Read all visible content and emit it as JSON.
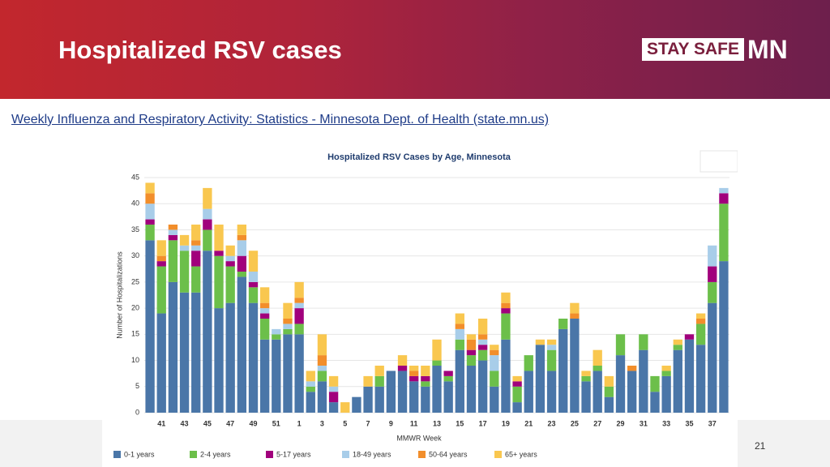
{
  "header": {
    "title": "Hospitalized RSV cases",
    "logo_text": "STAY SAFE",
    "logo_mark": "MN"
  },
  "source_link": "Weekly Influenza and Respiratory Activity: Statistics - Minnesota Dept. of Health (state.mn.us)",
  "page_number": "21",
  "chart_data": {
    "type": "stacked_bar",
    "title": "Hospitalized RSV Cases by Age, Minnesota",
    "x_label": "MMWR Week",
    "y_label": "Number of Hospitalizations",
    "categories": [
      null,
      "41",
      null,
      "43",
      null,
      "45",
      null,
      "47",
      null,
      "49",
      null,
      "51",
      null,
      "1",
      null,
      "3",
      null,
      "5",
      null,
      "7",
      null,
      "9",
      null,
      "11",
      null,
      "13",
      null,
      "15",
      null,
      "17",
      null,
      "19",
      null,
      "21",
      null,
      "23",
      null,
      "25",
      null,
      "27",
      null,
      "29",
      null,
      "31",
      null,
      "33",
      null,
      "35",
      null,
      "37",
      null
    ],
    "ylim": [
      0,
      45
    ],
    "yticks": [
      0,
      5,
      10,
      15,
      20,
      25,
      30,
      35,
      40,
      45
    ],
    "grid": true,
    "legend": "bottom",
    "series": [
      {
        "name": "0-1 years",
        "color": "#4a76a8",
        "values": [
          33,
          19,
          25,
          23,
          23,
          31,
          20,
          21,
          26,
          21,
          14,
          14,
          15,
          15,
          4,
          6,
          2,
          0,
          3,
          5,
          5,
          8,
          8,
          6,
          5,
          9,
          6,
          12,
          9,
          10,
          5,
          14,
          2,
          8,
          13,
          8,
          16,
          18,
          6,
          8,
          3,
          11,
          8,
          12,
          4,
          7,
          12,
          14,
          13,
          21,
          29
        ]
      },
      {
        "name": "2-4 years",
        "color": "#6cbf4a",
        "values": [
          3,
          9,
          8,
          8,
          5,
          4,
          10,
          7,
          1,
          3,
          4,
          1,
          1,
          2,
          1,
          2,
          0,
          0,
          0,
          0,
          2,
          0,
          0,
          0,
          1,
          1,
          1,
          2,
          2,
          2,
          3,
          5,
          3,
          3,
          0,
          4,
          2,
          0,
          1,
          1,
          2,
          4,
          0,
          3,
          3,
          1,
          1,
          0,
          4,
          4,
          11
        ]
      },
      {
        "name": "5-17 years",
        "color": "#a1007c",
        "values": [
          1,
          1,
          1,
          0,
          3,
          2,
          1,
          1,
          3,
          1,
          1,
          0,
          0,
          3,
          0,
          0,
          2,
          0,
          0,
          0,
          0,
          0,
          1,
          1,
          1,
          0,
          1,
          0,
          1,
          1,
          0,
          1,
          1,
          0,
          0,
          0,
          0,
          0,
          0,
          0,
          0,
          0,
          0,
          0,
          0,
          0,
          0,
          1,
          0,
          3,
          2
        ]
      },
      {
        "name": "18-49 years",
        "color": "#a8cde9",
        "values": [
          3,
          0,
          1,
          1,
          1,
          2,
          0,
          1,
          3,
          2,
          1,
          1,
          1,
          1,
          1,
          1,
          1,
          0,
          0,
          0,
          0,
          0,
          0,
          0,
          0,
          0,
          0,
          2,
          0,
          1,
          3,
          0,
          0,
          0,
          0,
          1,
          0,
          0,
          0,
          0,
          0,
          0,
          0,
          0,
          0,
          0,
          0,
          0,
          0,
          4,
          1
        ]
      },
      {
        "name": "50-64 years",
        "color": "#f28e2b",
        "values": [
          2,
          1,
          1,
          0,
          1,
          0,
          0,
          0,
          1,
          0,
          1,
          0,
          1,
          1,
          0,
          2,
          0,
          0,
          0,
          0,
          0,
          0,
          0,
          1,
          0,
          0,
          0,
          1,
          2,
          1,
          1,
          1,
          0,
          0,
          0,
          0,
          0,
          1,
          0,
          0,
          0,
          0,
          1,
          0,
          0,
          0,
          0,
          0,
          1,
          0,
          0
        ]
      },
      {
        "name": "65+ years",
        "color": "#f9c74f",
        "values": [
          2,
          3,
          0,
          2,
          3,
          4,
          5,
          2,
          2,
          4,
          3,
          0,
          3,
          3,
          2,
          4,
          2,
          2,
          0,
          2,
          2,
          0,
          2,
          1,
          2,
          4,
          0,
          2,
          1,
          3,
          1,
          2,
          1,
          0,
          1,
          1,
          0,
          2,
          1,
          3,
          2,
          0,
          0,
          0,
          0,
          1,
          1,
          0,
          1,
          0,
          0
        ]
      }
    ]
  }
}
